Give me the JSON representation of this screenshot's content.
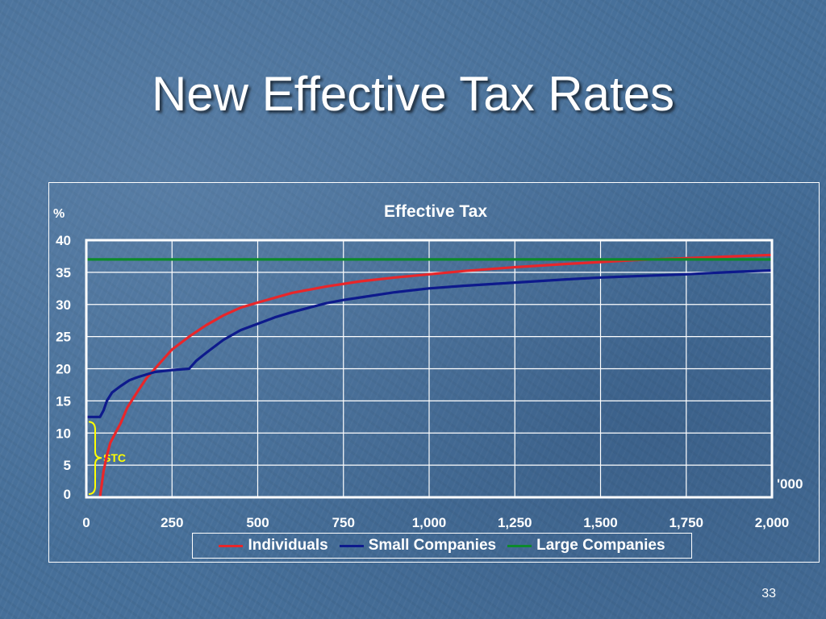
{
  "slide": {
    "title": "New Effective Tax Rates",
    "page_number": "33"
  },
  "chart_data": {
    "type": "line",
    "title": "Effective Tax",
    "ylabel": "%",
    "xlabel": "'000",
    "xlim": [
      0,
      2000
    ],
    "ylim": [
      0,
      40
    ],
    "x_ticks": [
      "0",
      "250",
      "500",
      "750",
      "1,000",
      "1,250",
      "1,500",
      "1,750",
      "2,000"
    ],
    "y_ticks": [
      "0",
      "5",
      "10",
      "15",
      "20",
      "25",
      "30",
      "35",
      "40"
    ],
    "grid": true,
    "legend_position": "bottom",
    "annotation": {
      "text": "STC",
      "y_range": [
        0,
        12.5
      ],
      "color": "#ffff00"
    },
    "series": [
      {
        "name": "Individuals",
        "color": "#e8262a",
        "points": [
          [
            40,
            0
          ],
          [
            50,
            4
          ],
          [
            60,
            6.5
          ],
          [
            70,
            8.5
          ],
          [
            85,
            10
          ],
          [
            100,
            11.5
          ],
          [
            120,
            14
          ],
          [
            150,
            16.5
          ],
          [
            175,
            18.5
          ],
          [
            200,
            20
          ],
          [
            225,
            21.5
          ],
          [
            250,
            23
          ],
          [
            300,
            25
          ],
          [
            350,
            26.8
          ],
          [
            400,
            28.3
          ],
          [
            450,
            29.5
          ],
          [
            500,
            30.3
          ],
          [
            600,
            31.8
          ],
          [
            700,
            32.8
          ],
          [
            800,
            33.6
          ],
          [
            900,
            34.2
          ],
          [
            1000,
            34.7
          ],
          [
            1100,
            35.2
          ],
          [
            1250,
            35.8
          ],
          [
            1400,
            36.3
          ],
          [
            1500,
            36.6
          ],
          [
            1600,
            36.9
          ],
          [
            1750,
            37.2
          ],
          [
            1900,
            37.5
          ],
          [
            2000,
            37.7
          ]
        ]
      },
      {
        "name": "Small Companies",
        "color": "#0d1a8c",
        "points": [
          [
            0,
            12.5
          ],
          [
            40,
            12.5
          ],
          [
            50,
            13.5
          ],
          [
            60,
            15
          ],
          [
            75,
            16.3
          ],
          [
            100,
            17.3
          ],
          [
            125,
            18.2
          ],
          [
            150,
            18.7
          ],
          [
            200,
            19.5
          ],
          [
            250,
            19.8
          ],
          [
            300,
            20
          ],
          [
            320,
            21.2
          ],
          [
            350,
            22.5
          ],
          [
            400,
            24.5
          ],
          [
            450,
            26
          ],
          [
            500,
            27
          ],
          [
            550,
            28
          ],
          [
            600,
            28.8
          ],
          [
            650,
            29.5
          ],
          [
            700,
            30.2
          ],
          [
            750,
            30.7
          ],
          [
            800,
            31.1
          ],
          [
            900,
            31.9
          ],
          [
            1000,
            32.5
          ],
          [
            1100,
            32.9
          ],
          [
            1250,
            33.4
          ],
          [
            1400,
            33.9
          ],
          [
            1500,
            34.2
          ],
          [
            1600,
            34.4
          ],
          [
            1750,
            34.7
          ],
          [
            1900,
            35.1
          ],
          [
            2000,
            35.3
          ]
        ]
      },
      {
        "name": "Large Companies",
        "color": "#0c8a2b",
        "points": [
          [
            0,
            37
          ],
          [
            2000,
            37
          ]
        ]
      }
    ]
  }
}
